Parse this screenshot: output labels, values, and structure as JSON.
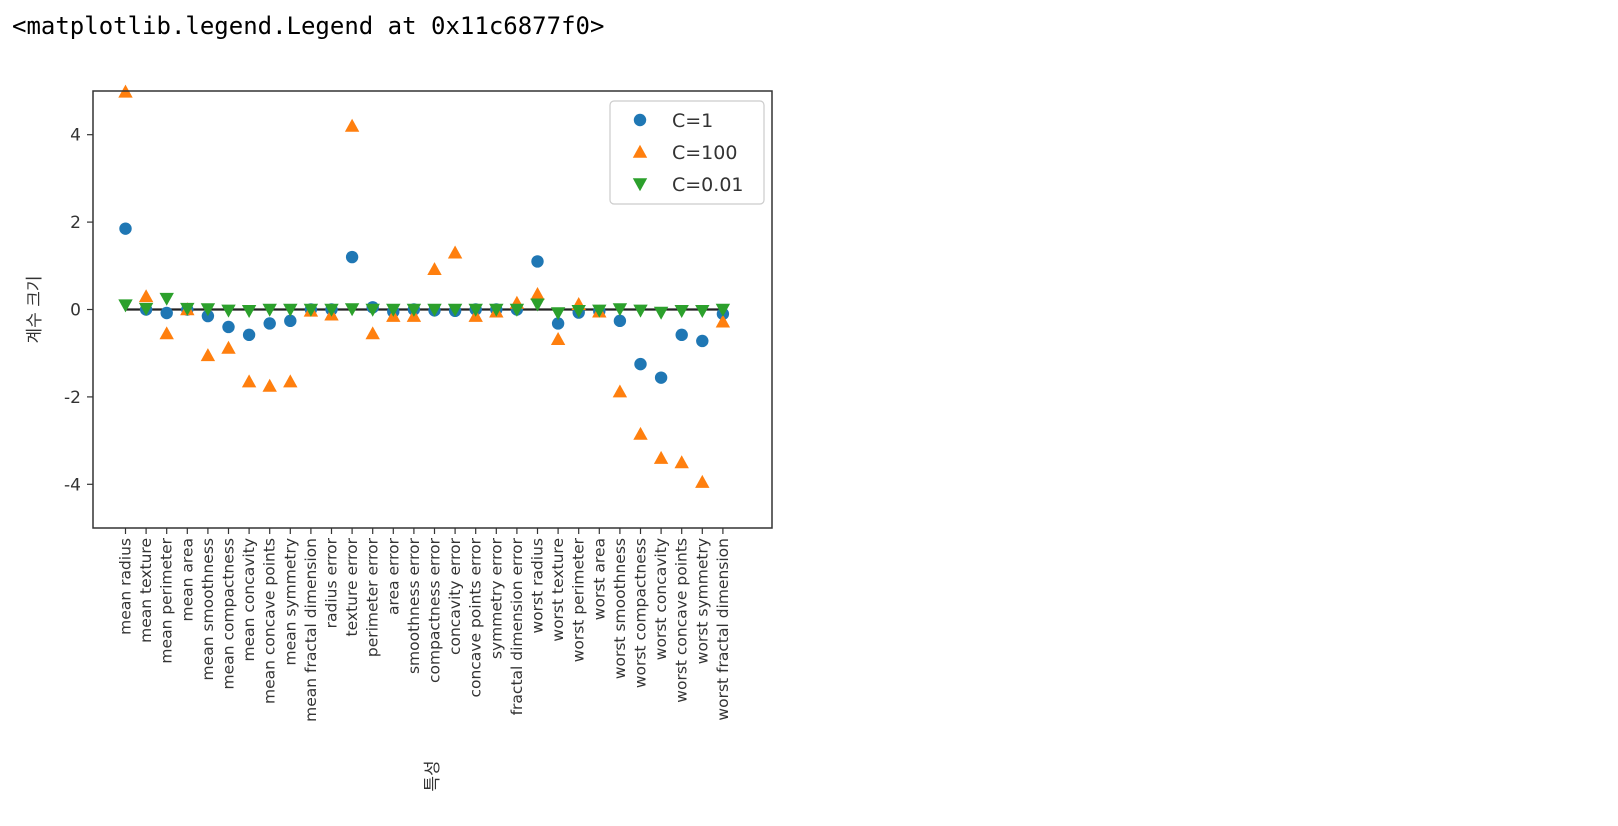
{
  "output_repr": "<matplotlib.legend.Legend at 0x11c6877f0>",
  "colors": {
    "series1": "#1f77b4",
    "series2": "#ff7f0e",
    "series3": "#2ca02c",
    "zero_line": "#222222",
    "frame": "#333333"
  },
  "chart_data": {
    "type": "scatter",
    "xlabel": "특성",
    "ylabel": "계수 크기",
    "ylim": [
      -5,
      5
    ],
    "yticks": [
      -4,
      -2,
      0,
      2,
      4
    ],
    "hline_y": 0,
    "legend_position": "top-right",
    "categories": [
      "mean radius",
      "mean texture",
      "mean perimeter",
      "mean area",
      "mean smoothness",
      "mean compactness",
      "mean concavity",
      "mean concave points",
      "mean symmetry",
      "mean fractal dimension",
      "radius error",
      "texture error",
      "perimeter error",
      "area error",
      "smoothness error",
      "compactness error",
      "concavity error",
      "concave points error",
      "symmetry error",
      "fractal dimension error",
      "worst radius",
      "worst texture",
      "worst perimeter",
      "worst area",
      "worst smoothness",
      "worst compactness",
      "worst concavity",
      "worst concave points",
      "worst symmetry",
      "worst fractal dimension"
    ],
    "series": [
      {
        "name": "C=1",
        "marker": "circle",
        "values": [
          1.85,
          0.0,
          -0.08,
          0.0,
          -0.15,
          -0.4,
          -0.58,
          -0.32,
          -0.26,
          0.0,
          0.0,
          1.2,
          0.05,
          -0.05,
          0.0,
          -0.02,
          -0.03,
          0.0,
          0.0,
          0.0,
          1.1,
          -0.32,
          -0.07,
          -0.04,
          -0.26,
          -1.25,
          -1.56,
          -0.58,
          -0.72,
          -0.1
        ]
      },
      {
        "name": "C=100",
        "marker": "triangle-up",
        "values": [
          4.98,
          0.3,
          -0.55,
          0.0,
          -1.05,
          -0.88,
          -1.65,
          -1.75,
          -1.65,
          -0.03,
          -0.12,
          4.2,
          -0.55,
          -0.15,
          -0.15,
          0.92,
          1.3,
          -0.15,
          -0.05,
          0.15,
          0.35,
          -0.68,
          0.12,
          -0.05,
          -1.88,
          -2.85,
          -3.4,
          -3.5,
          -3.95,
          -0.28
        ]
      },
      {
        "name": "C=0.01",
        "marker": "triangle-down",
        "values": [
          0.1,
          0.02,
          0.25,
          0.02,
          0.01,
          -0.02,
          -0.03,
          0.0,
          0.0,
          0.0,
          0.0,
          0.01,
          0.0,
          0.0,
          0.0,
          0.0,
          0.0,
          0.0,
          0.0,
          0.0,
          0.12,
          -0.08,
          -0.03,
          -0.02,
          0.01,
          -0.02,
          -0.07,
          -0.03,
          -0.03,
          0.0
        ]
      }
    ]
  }
}
